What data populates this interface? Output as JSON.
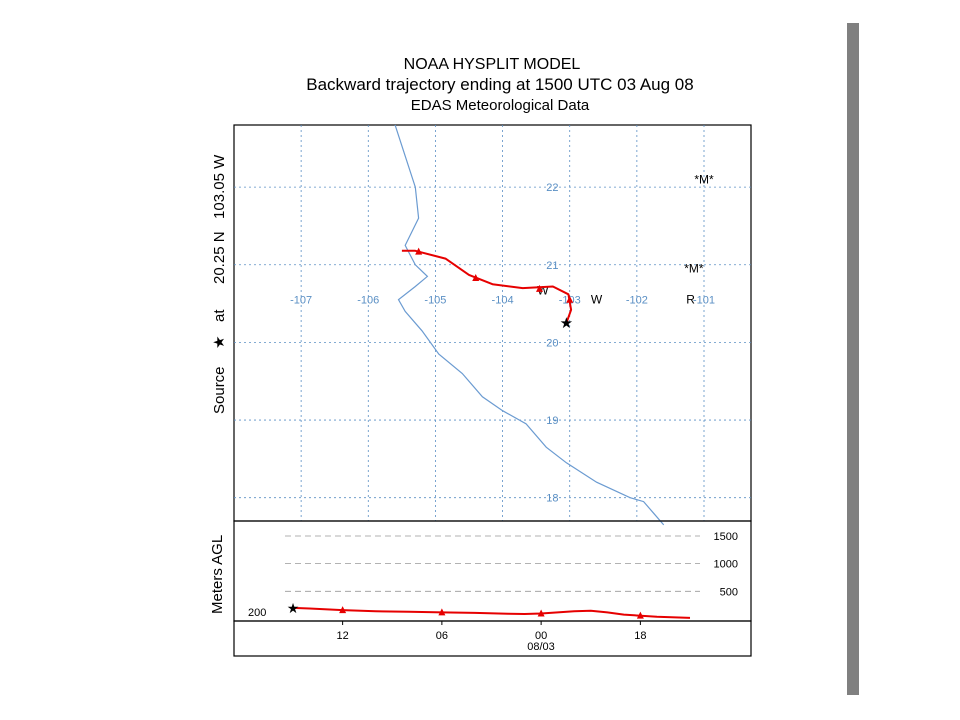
{
  "chart_data": {
    "type": "line",
    "title": "NOAA HYSPLIT MODEL",
    "subtitle": "Backward trajectory ending at 1500 UTC 03 Aug 08",
    "subtitle2": "EDAS Meteorological Data",
    "source_label": {
      "prefix": "Source",
      "at": "at",
      "location": "20.25 N   103.05 W"
    },
    "map": {
      "lon_ticks": [
        -107,
        -106,
        -105,
        -104,
        -103,
        -102,
        -101
      ],
      "lat_ticks": [
        22,
        21,
        20,
        19,
        18
      ],
      "lon_range": [
        -108.0,
        -100.3
      ],
      "lat_range": [
        17.7,
        22.8
      ],
      "grid": true,
      "source": {
        "lon": -103.05,
        "lat": 20.25
      },
      "trajectory": [
        {
          "lon": -103.05,
          "lat": 20.25
        },
        {
          "lon": -102.98,
          "lat": 20.42
        },
        {
          "lon": -103.02,
          "lat": 20.62
        },
        {
          "lon": -103.25,
          "lat": 20.72
        },
        {
          "lon": -103.7,
          "lat": 20.7
        },
        {
          "lon": -104.15,
          "lat": 20.75
        },
        {
          "lon": -104.5,
          "lat": 20.87
        },
        {
          "lon": -104.85,
          "lat": 21.08
        },
        {
          "lon": -105.3,
          "lat": 21.18
        },
        {
          "lon": -105.5,
          "lat": 21.18
        }
      ],
      "markers": [
        {
          "lon": -103.0,
          "lat": 20.55
        },
        {
          "lon": -103.45,
          "lat": 20.69
        },
        {
          "lon": -104.4,
          "lat": 20.83
        },
        {
          "lon": -105.25,
          "lat": 21.17
        }
      ],
      "coastline": [
        {
          "lon": -105.6,
          "lat": 22.8
        },
        {
          "lon": -105.45,
          "lat": 22.4
        },
        {
          "lon": -105.3,
          "lat": 22.0
        },
        {
          "lon": -105.25,
          "lat": 21.6
        },
        {
          "lon": -105.45,
          "lat": 21.25
        },
        {
          "lon": -105.3,
          "lat": 21.0
        },
        {
          "lon": -105.12,
          "lat": 20.85
        },
        {
          "lon": -105.3,
          "lat": 20.72
        },
        {
          "lon": -105.55,
          "lat": 20.55
        },
        {
          "lon": -105.45,
          "lat": 20.4
        },
        {
          "lon": -105.2,
          "lat": 20.15
        },
        {
          "lon": -104.95,
          "lat": 19.85
        },
        {
          "lon": -104.6,
          "lat": 19.6
        },
        {
          "lon": -104.3,
          "lat": 19.3
        },
        {
          "lon": -104.0,
          "lat": 19.12
        },
        {
          "lon": -103.65,
          "lat": 18.95
        },
        {
          "lon": -103.35,
          "lat": 18.65
        },
        {
          "lon": -103.05,
          "lat": 18.45
        },
        {
          "lon": -102.6,
          "lat": 18.2
        },
        {
          "lon": -102.1,
          "lat": 18.0
        },
        {
          "lon": -101.9,
          "lat": 17.95
        },
        {
          "lon": -101.75,
          "lat": 17.8
        },
        {
          "lon": -101.6,
          "lat": 17.65
        }
      ],
      "text_labels": [
        {
          "text": "*M*",
          "lon": -101.0,
          "lat": 22.1
        },
        {
          "text": "*M*",
          "lon": -101.15,
          "lat": 20.95
        },
        {
          "text": "R",
          "lon": -101.2,
          "lat": 20.55
        },
        {
          "text": "W",
          "lon": -102.6,
          "lat": 20.55
        },
        {
          "text": "W",
          "lon": -103.4,
          "lat": 20.67
        }
      ]
    },
    "vertical": {
      "ylabel": "Meters AGL",
      "y_ticks": [
        1500,
        1000,
        500
      ],
      "start_label": "200",
      "ylim": [
        0,
        1700
      ],
      "x_hours_back": [
        0,
        6,
        12,
        18,
        24,
        30,
        36,
        42,
        48
      ],
      "x_tick_labels": [
        {
          "label": "12",
          "hour": 3
        },
        {
          "label": "06",
          "hour": 9
        },
        {
          "label": "00",
          "hour": 15
        },
        {
          "label": "18",
          "hour": 21
        }
      ],
      "date_label": "08/03",
      "heights": [
        200,
        190,
        160,
        140,
        130,
        120,
        110,
        95,
        90,
        100,
        120,
        140,
        150,
        120,
        80,
        40,
        20
      ],
      "height_hours": [
        0,
        1,
        3,
        5,
        7,
        9,
        11,
        13,
        14,
        15,
        16,
        17,
        18,
        19,
        20,
        22,
        24
      ]
    }
  },
  "colors": {
    "trajectory": "#e60000",
    "grid": "#5a8fc4",
    "coast": "#6b9bd1",
    "scrollbar": "#808080"
  }
}
